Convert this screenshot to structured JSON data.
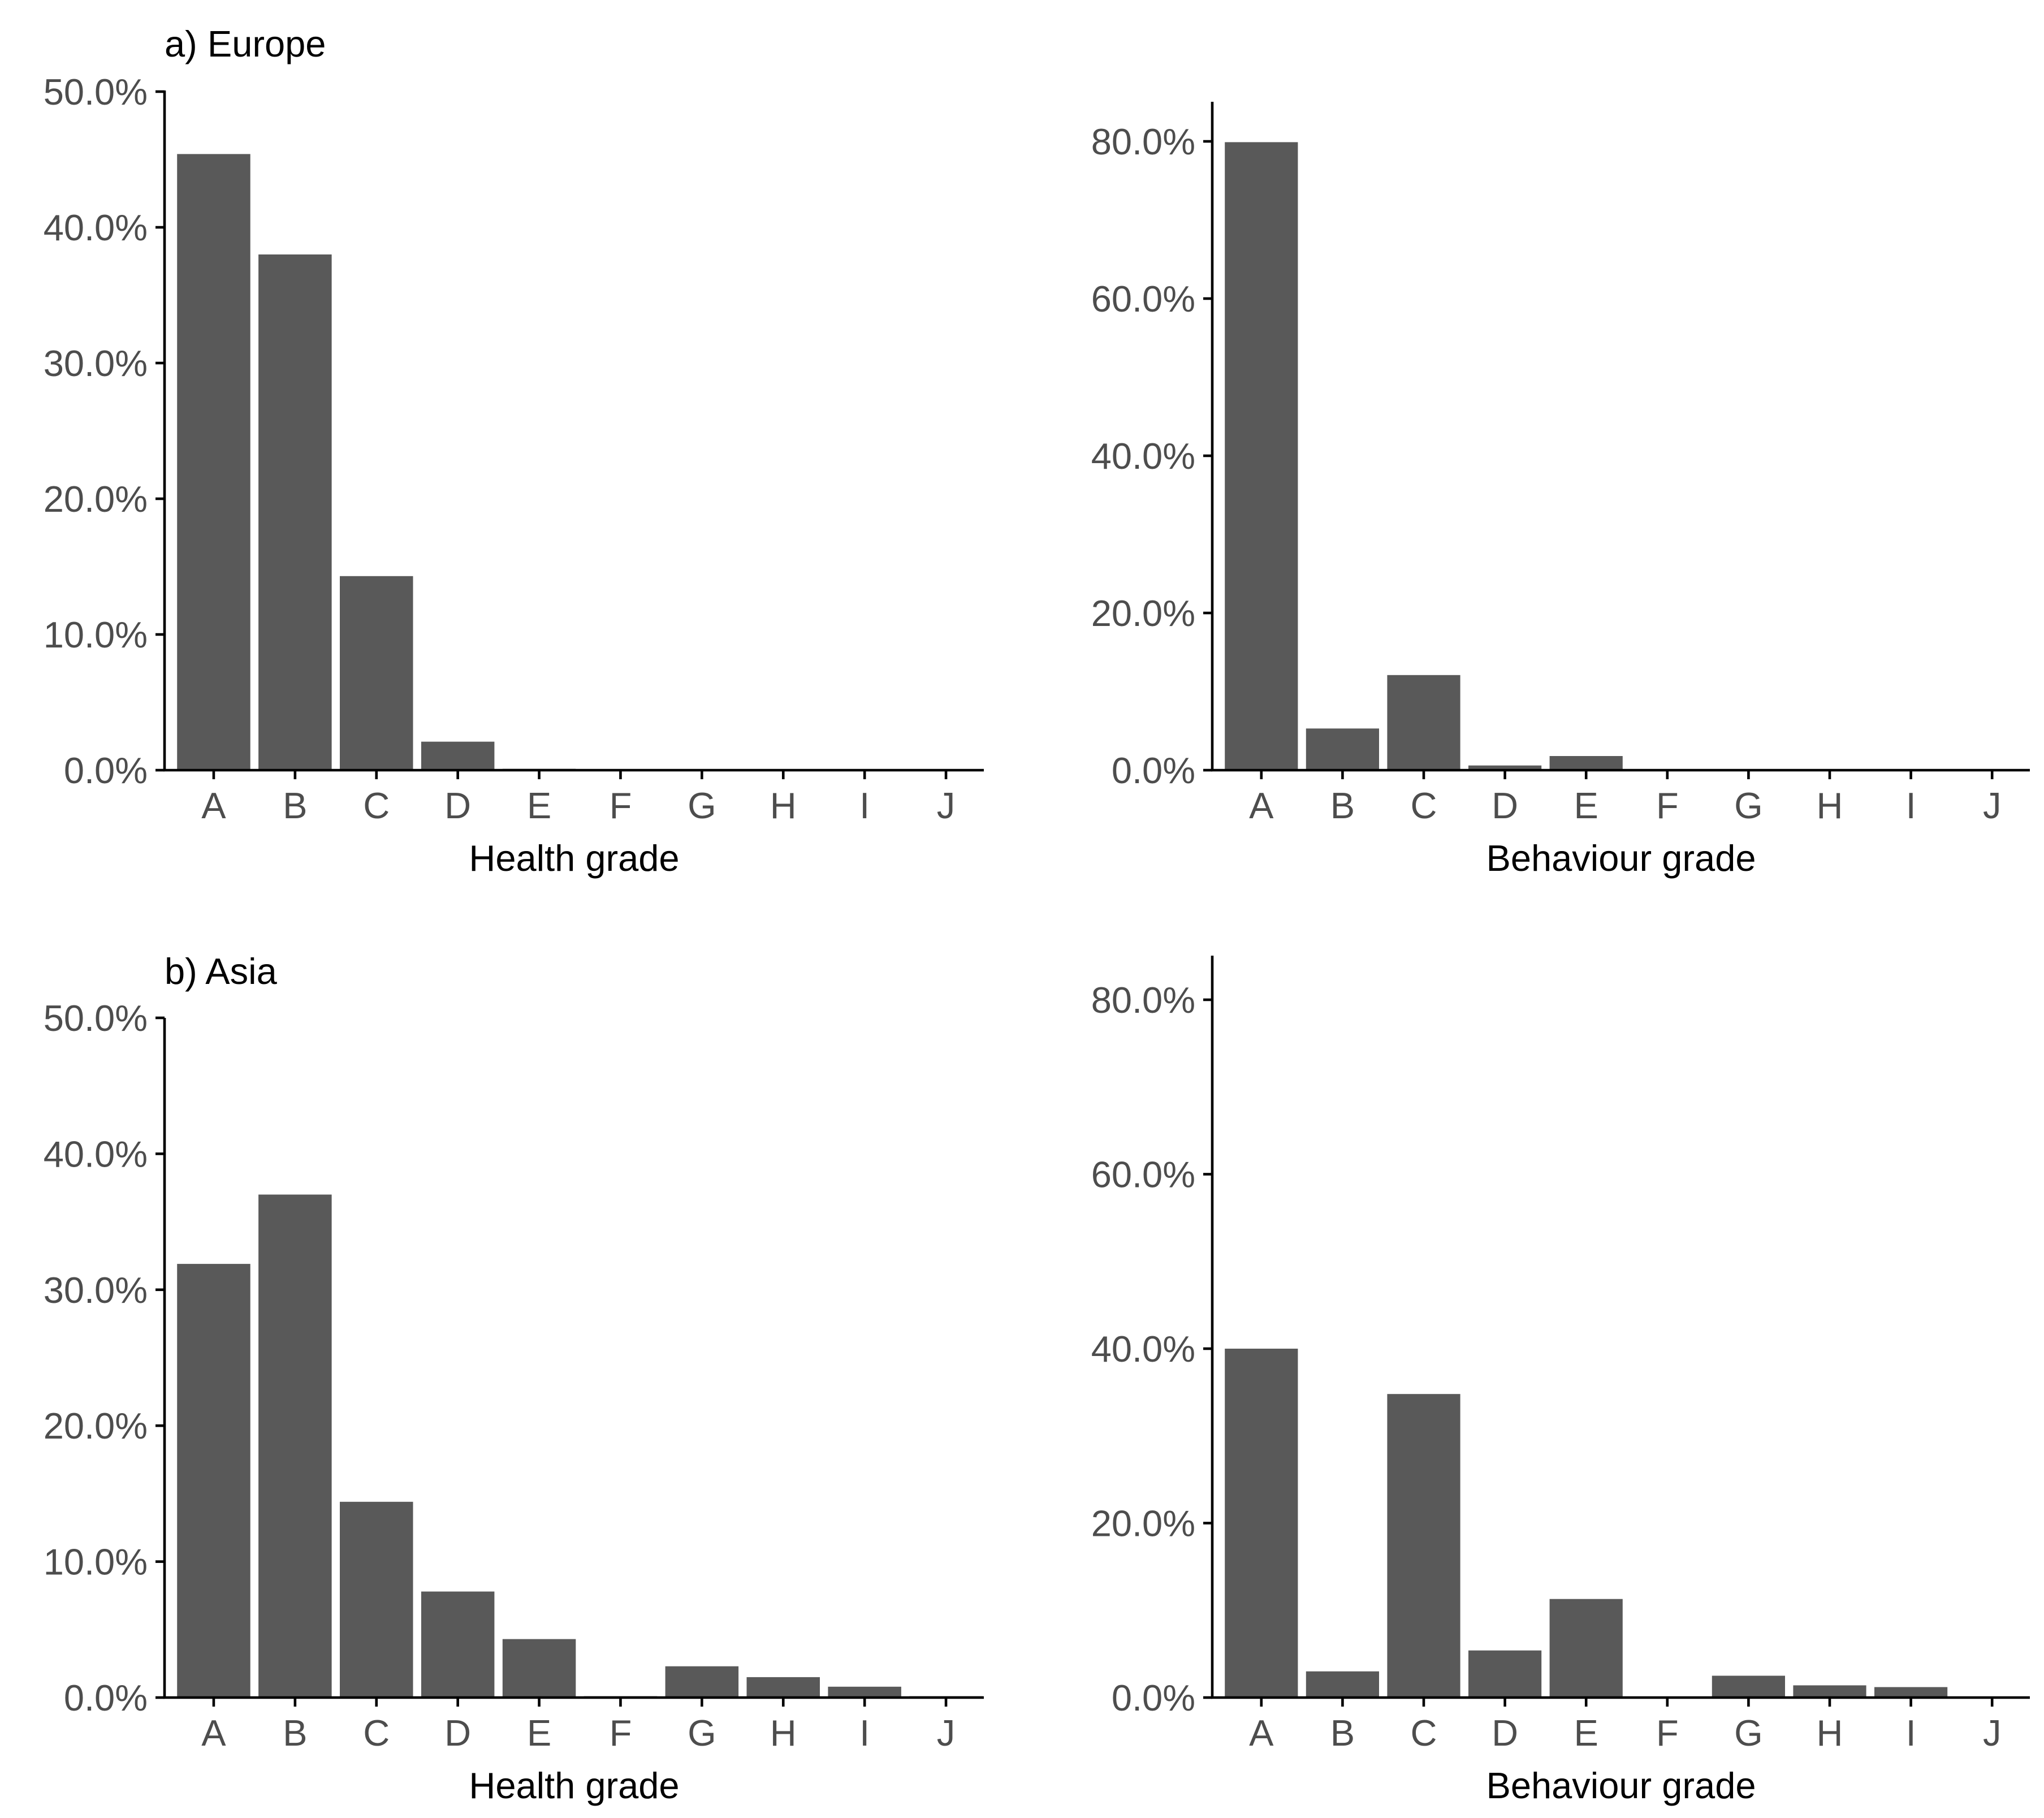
{
  "figure": {
    "bar_color": "#595959",
    "axis_color": "#000000",
    "tick_label_color": "#4d4d4d"
  },
  "chart_data": [
    {
      "id": "europe-health",
      "type": "bar",
      "panel_label": "a) Europe",
      "title": "",
      "xlabel": "Health grade",
      "ylabel": "",
      "categories": [
        "A",
        "B",
        "C",
        "D",
        "E",
        "F",
        "G",
        "H",
        "I",
        "J"
      ],
      "values": [
        45.4,
        38.0,
        14.3,
        2.1,
        0.1,
        0.0,
        0.0,
        0.0,
        0.0,
        0.0
      ],
      "ylim": [
        0,
        50
      ],
      "yticks": [
        0,
        10,
        20,
        30,
        40,
        50
      ],
      "ytick_labels": [
        "0.0%",
        "10.0%",
        "20.0%",
        "30.0%",
        "40.0%",
        "50.0%"
      ]
    },
    {
      "id": "europe-behaviour",
      "type": "bar",
      "panel_label": "",
      "title": "",
      "xlabel": "Behaviour grade",
      "ylabel": "",
      "categories": [
        "A",
        "B",
        "C",
        "D",
        "E",
        "F",
        "G",
        "H",
        "I",
        "J"
      ],
      "values": [
        79.9,
        5.3,
        12.1,
        0.6,
        1.8,
        0.1,
        0.1,
        0.0,
        0.0,
        0.0
      ],
      "ylim": [
        0,
        85
      ],
      "yticks": [
        0,
        20,
        40,
        60,
        80
      ],
      "ytick_labels": [
        "0.0%",
        "20.0%",
        "40.0%",
        "60.0%",
        "80.0%"
      ]
    },
    {
      "id": "asia-health",
      "type": "bar",
      "panel_label": "b) Asia",
      "title": "",
      "xlabel": "Health grade",
      "ylabel": "",
      "categories": [
        "A",
        "B",
        "C",
        "D",
        "E",
        "F",
        "G",
        "H",
        "I",
        "J"
      ],
      "values": [
        31.9,
        37.0,
        14.4,
        7.8,
        4.3,
        0.1,
        2.3,
        1.5,
        0.8,
        0.1
      ],
      "ylim": [
        0,
        50
      ],
      "yticks": [
        0,
        10,
        20,
        30,
        40,
        50
      ],
      "ytick_labels": [
        "0.0%",
        "10.0%",
        "20.0%",
        "30.0%",
        "40.0%",
        "50.0%"
      ]
    },
    {
      "id": "asia-behaviour",
      "type": "bar",
      "panel_label": "",
      "title": "",
      "xlabel": "Behaviour grade",
      "ylabel": "",
      "categories": [
        "A",
        "B",
        "C",
        "D",
        "E",
        "F",
        "G",
        "H",
        "I",
        "J"
      ],
      "values": [
        40.0,
        3.0,
        34.8,
        5.4,
        11.3,
        0.1,
        2.5,
        1.4,
        1.2,
        0.1
      ],
      "ylim": [
        0,
        85
      ],
      "yticks": [
        0,
        20,
        40,
        60,
        80
      ],
      "ytick_labels": [
        "0.0%",
        "20.0%",
        "40.0%",
        "60.0%",
        "80.0%"
      ]
    }
  ]
}
